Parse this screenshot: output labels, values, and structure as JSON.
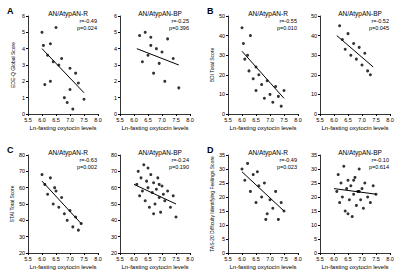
{
  "chart_data": [
    {
      "type": "scatter",
      "panel": "A",
      "title": "AN/AtypAN-R",
      "x_label": "Ln-fasting oxytocin levels",
      "y_label": "EDE-Q Global Score",
      "annotations": [
        "r=-0.49",
        "p=0.024"
      ],
      "grid": false,
      "xlim": [
        5.5,
        8.0
      ],
      "xticks": [
        {
          "value": 5.5,
          "label": "5.5"
        },
        {
          "value": 6.0,
          "label": "6.0"
        },
        {
          "value": 6.5,
          "label": "6.5"
        },
        {
          "value": 7.0,
          "label": "7.0"
        },
        {
          "value": 7.5,
          "label": "7.5"
        },
        {
          "value": 8.0,
          "label": "8.0"
        }
      ],
      "ylim": [
        0,
        6
      ],
      "yticks": [
        0,
        1,
        2,
        3,
        4,
        5,
        6
      ],
      "series": [
        {
          "type": "scatter",
          "color": "#000000",
          "marker": "circle",
          "x": [
            6.0,
            6.05,
            6.1,
            6.2,
            6.3,
            6.3,
            6.4,
            6.5,
            6.6,
            6.7,
            6.8,
            6.9,
            7.0,
            7.0,
            7.1,
            7.2,
            7.3,
            7.5
          ],
          "values": [
            5.0,
            4.2,
            1.8,
            3.6,
            4.3,
            2.0,
            3.2,
            5.3,
            3.0,
            3.4,
            1.0,
            0.7,
            2.8,
            1.5,
            0.3,
            2.5,
            1.9,
            0.9
          ]
        },
        {
          "type": "line",
          "color": "#000000",
          "line_style": "solid",
          "x": [
            6.0,
            7.5
          ],
          "values": [
            4.0,
            1.3
          ]
        }
      ]
    },
    {
      "type": "scatter",
      "title": "AN/AtypAN-BP",
      "x_label": "Ln-fasting oxytocin levels",
      "annotations": [
        "r=-0.25",
        "p=0.396"
      ],
      "grid": false,
      "xlim": [
        5.5,
        8.0
      ],
      "xticks": [
        {
          "value": 5.5,
          "label": "5.5"
        },
        {
          "value": 6.0,
          "label": "6.0"
        },
        {
          "value": 6.5,
          "label": "6.5"
        },
        {
          "value": 7.0,
          "label": "7.0"
        },
        {
          "value": 7.5,
          "label": "7.5"
        },
        {
          "value": 8.0,
          "label": "8.0"
        }
      ],
      "ylim": [
        0,
        6
      ],
      "yticks": [
        0,
        1,
        2,
        3,
        4,
        5,
        6
      ],
      "series": [
        {
          "type": "scatter",
          "color": "#000000",
          "marker": "circle",
          "x": [
            6.2,
            6.3,
            6.4,
            6.5,
            6.6,
            6.7,
            6.8,
            6.9,
            7.0,
            7.1,
            7.2,
            7.4,
            7.6,
            6.6
          ],
          "values": [
            4.8,
            3.2,
            5.0,
            3.6,
            4.2,
            2.5,
            4.0,
            3.1,
            3.8,
            2.0,
            4.6,
            3.4,
            1.6,
            4.7
          ]
        },
        {
          "type": "line",
          "color": "#000000",
          "line_style": "solid",
          "x": [
            6.1,
            7.6
          ],
          "values": [
            4.0,
            3.0
          ]
        }
      ]
    },
    {
      "type": "scatter",
      "panel": "B",
      "title": "AN/AtypAN-R",
      "x_label": "Ln-fasting oxytocin levels",
      "y_label": "BDI Total Score",
      "annotations": [
        "r=-0.55",
        "p=0.010"
      ],
      "grid": false,
      "xlim": [
        5.5,
        8.0
      ],
      "xticks": [
        {
          "value": 5.5,
          "label": "5.5"
        },
        {
          "value": 6.0,
          "label": "6.0"
        },
        {
          "value": 6.5,
          "label": "6.5"
        },
        {
          "value": 7.0,
          "label": "7.0"
        },
        {
          "value": 7.5,
          "label": "7.5"
        },
        {
          "value": 8.0,
          "label": "8.0"
        }
      ],
      "ylim": [
        0,
        50
      ],
      "yticks": [
        0,
        10,
        20,
        30,
        40,
        50
      ],
      "series": [
        {
          "type": "scatter",
          "color": "#000000",
          "marker": "circle",
          "x": [
            6.0,
            6.05,
            6.1,
            6.2,
            6.25,
            6.3,
            6.4,
            6.5,
            6.5,
            6.6,
            6.7,
            6.8,
            6.9,
            7.0,
            7.1,
            7.2,
            7.3,
            7.4,
            7.5
          ],
          "values": [
            44,
            36,
            28,
            30,
            22,
            40,
            18,
            24,
            12,
            20,
            15,
            8,
            17,
            10,
            6,
            14,
            9,
            4,
            12
          ]
        },
        {
          "type": "line",
          "color": "#000000",
          "line_style": "solid",
          "x": [
            6.0,
            7.5
          ],
          "values": [
            32,
            8
          ]
        }
      ]
    },
    {
      "type": "scatter",
      "title": "AN/AtypAN-BP",
      "x_label": "Ln-fasting oxytocin levels",
      "annotations": [
        "r=-0.52",
        "p=0.045"
      ],
      "grid": false,
      "xlim": [
        5.5,
        8.0
      ],
      "xticks": [
        {
          "value": 5.5,
          "label": "5.5"
        },
        {
          "value": 6.0,
          "label": "6.0"
        },
        {
          "value": 6.5,
          "label": "6.5"
        },
        {
          "value": 7.0,
          "label": "7.0"
        },
        {
          "value": 7.5,
          "label": "7.5"
        },
        {
          "value": 8.0,
          "label": "8.0"
        }
      ],
      "ylim": [
        0,
        50
      ],
      "yticks": [
        0,
        10,
        20,
        30,
        40,
        50
      ],
      "series": [
        {
          "type": "scatter",
          "color": "#000000",
          "marker": "circle",
          "x": [
            6.2,
            6.3,
            6.4,
            6.5,
            6.6,
            6.7,
            6.8,
            6.9,
            7.0,
            7.1,
            7.2,
            7.3
          ],
          "values": [
            45,
            38,
            33,
            41,
            30,
            36,
            28,
            34,
            25,
            31,
            22,
            20
          ]
        },
        {
          "type": "line",
          "color": "#000000",
          "line_style": "solid",
          "x": [
            6.1,
            7.4
          ],
          "values": [
            40,
            24
          ]
        }
      ]
    },
    {
      "type": "scatter",
      "panel": "C",
      "title": "AN/AtypAN-R",
      "x_label": "Ln-fasting oxytocin levels",
      "y_label": "STAI Total Score",
      "annotations": [
        "r=-0.63",
        "p=0.002"
      ],
      "grid": false,
      "xlim": [
        5.5,
        8.0
      ],
      "xticks": [
        {
          "value": 5.5,
          "label": "5.5"
        },
        {
          "value": 6.0,
          "label": "6.0"
        },
        {
          "value": 6.5,
          "label": "6.5"
        },
        {
          "value": 7.0,
          "label": "7.0"
        },
        {
          "value": 7.5,
          "label": "7.5"
        },
        {
          "value": 8.0,
          "label": "8.0"
        }
      ],
      "ylim": [
        20,
        80
      ],
      "yticks": [
        20,
        30,
        40,
        50,
        60,
        70,
        80
      ],
      "series": [
        {
          "type": "scatter",
          "color": "#000000",
          "marker": "circle",
          "x": [
            6.0,
            6.1,
            6.2,
            6.3,
            6.4,
            6.5,
            6.6,
            6.7,
            6.8,
            6.9,
            7.0,
            7.1,
            7.2,
            7.3,
            7.4,
            6.45
          ],
          "values": [
            68,
            62,
            56,
            66,
            50,
            58,
            48,
            54,
            44,
            40,
            46,
            36,
            42,
            34,
            38,
            60
          ]
        },
        {
          "type": "line",
          "color": "#000000",
          "line_style": "solid",
          "x": [
            6.0,
            7.4
          ],
          "values": [
            64,
            38
          ]
        }
      ]
    },
    {
      "type": "scatter",
      "title": "AN/AtypAN-BP",
      "x_label": "Ln-fasting oxytocin levels",
      "annotations": [
        "r=-0.24",
        "p=0.190"
      ],
      "grid": false,
      "xlim": [
        5.5,
        8.0
      ],
      "xticks": [
        {
          "value": 5.5,
          "label": "5.5"
        },
        {
          "value": 6.0,
          "label": "6.0"
        },
        {
          "value": 6.5,
          "label": "6.5"
        },
        {
          "value": 7.0,
          "label": "7.0"
        },
        {
          "value": 7.5,
          "label": "7.5"
        },
        {
          "value": 8.0,
          "label": "8.0"
        }
      ],
      "ylim": [
        20,
        80
      ],
      "yticks": [
        20,
        30,
        40,
        50,
        60,
        70,
        80
      ],
      "series": [
        {
          "type": "scatter",
          "color": "#000000",
          "marker": "circle",
          "x": [
            6.1,
            6.15,
            6.2,
            6.25,
            6.3,
            6.35,
            6.4,
            6.45,
            6.5,
            6.55,
            6.6,
            6.65,
            6.7,
            6.75,
            6.8,
            6.85,
            6.9,
            6.95,
            7.0,
            7.05,
            7.1,
            7.2,
            7.3,
            7.4,
            7.5,
            6.5,
            6.7,
            6.9
          ],
          "values": [
            62,
            70,
            55,
            66,
            58,
            74,
            52,
            64,
            60,
            48,
            68,
            57,
            63,
            50,
            59,
            66,
            54,
            45,
            61,
            56,
            52,
            58,
            48,
            55,
            42,
            72,
            44,
            62
          ]
        },
        {
          "type": "line",
          "color": "#000000",
          "line_style": "solid",
          "x": [
            6.0,
            7.5
          ],
          "values": [
            62,
            50
          ]
        }
      ]
    },
    {
      "type": "scatter",
      "panel": "D",
      "title": "AN/AtypAN-R",
      "x_label": "Ln-fasting oxytocin levels",
      "y_label": "TAS-20 Difficulty Identifying Feelings Score",
      "annotations": [
        "r=-0.49",
        "p=0.023"
      ],
      "grid": false,
      "xlim": [
        5.5,
        8.0
      ],
      "xticks": [
        {
          "value": 5.5,
          "label": "5.5"
        },
        {
          "value": 6.0,
          "label": "6.0"
        },
        {
          "value": 6.5,
          "label": "6.5"
        },
        {
          "value": 7.0,
          "label": "7.0"
        },
        {
          "value": 7.5,
          "label": "7.5"
        },
        {
          "value": 8.0,
          "label": "8.0"
        }
      ],
      "ylim": [
        0,
        35
      ],
      "yticks": [
        0,
        5,
        10,
        15,
        20,
        25,
        30,
        35
      ],
      "series": [
        {
          "type": "scatter",
          "color": "#000000",
          "marker": "circle",
          "x": [
            6.0,
            6.1,
            6.2,
            6.3,
            6.4,
            6.5,
            6.6,
            6.7,
            6.8,
            6.9,
            7.0,
            7.1,
            7.2,
            7.3,
            7.4,
            7.5,
            6.55,
            6.85
          ],
          "values": [
            30,
            26,
            32,
            22,
            28,
            18,
            24,
            20,
            25,
            14,
            19,
            16,
            22,
            12,
            18,
            15,
            29,
            12
          ]
        },
        {
          "type": "line",
          "color": "#000000",
          "line_style": "solid",
          "x": [
            6.0,
            7.5
          ],
          "values": [
            29,
            15
          ]
        }
      ]
    },
    {
      "type": "scatter",
      "title": "AN/AtypAN-BP",
      "x_label": "Ln-fasting oxytocin levels",
      "annotations": [
        "r=-0.10",
        "p=0.614"
      ],
      "grid": false,
      "xlim": [
        5.5,
        8.0
      ],
      "xticks": [
        {
          "value": 5.5,
          "label": "5.5"
        },
        {
          "value": 6.0,
          "label": "6.0"
        },
        {
          "value": 6.5,
          "label": "6.5"
        },
        {
          "value": 7.0,
          "label": "7.0"
        },
        {
          "value": 7.5,
          "label": "7.5"
        },
        {
          "value": 8.0,
          "label": "8.0"
        }
      ],
      "ylim": [
        0,
        35
      ],
      "yticks": [
        0,
        5,
        10,
        15,
        20,
        25,
        30,
        35
      ],
      "series": [
        {
          "type": "scatter",
          "color": "#000000",
          "marker": "circle",
          "x": [
            6.1,
            6.15,
            6.2,
            6.25,
            6.3,
            6.35,
            6.4,
            6.45,
            6.5,
            6.55,
            6.6,
            6.65,
            6.7,
            6.75,
            6.8,
            6.85,
            6.9,
            6.95,
            7.0,
            7.05,
            7.1,
            7.2,
            7.3,
            7.4,
            7.5,
            6.5,
            6.7,
            6.9
          ],
          "values": [
            22,
            28,
            18,
            25,
            20,
            31,
            15,
            23,
            26,
            19,
            24,
            13,
            21,
            27,
            17,
            22,
            30,
            19,
            23,
            16,
            25,
            20,
            18,
            24,
            21,
            14,
            26,
            22
          ]
        },
        {
          "type": "line",
          "color": "#000000",
          "line_style": "solid",
          "x": [
            6.0,
            7.5
          ],
          "values": [
            23,
            21
          ]
        }
      ]
    }
  ]
}
